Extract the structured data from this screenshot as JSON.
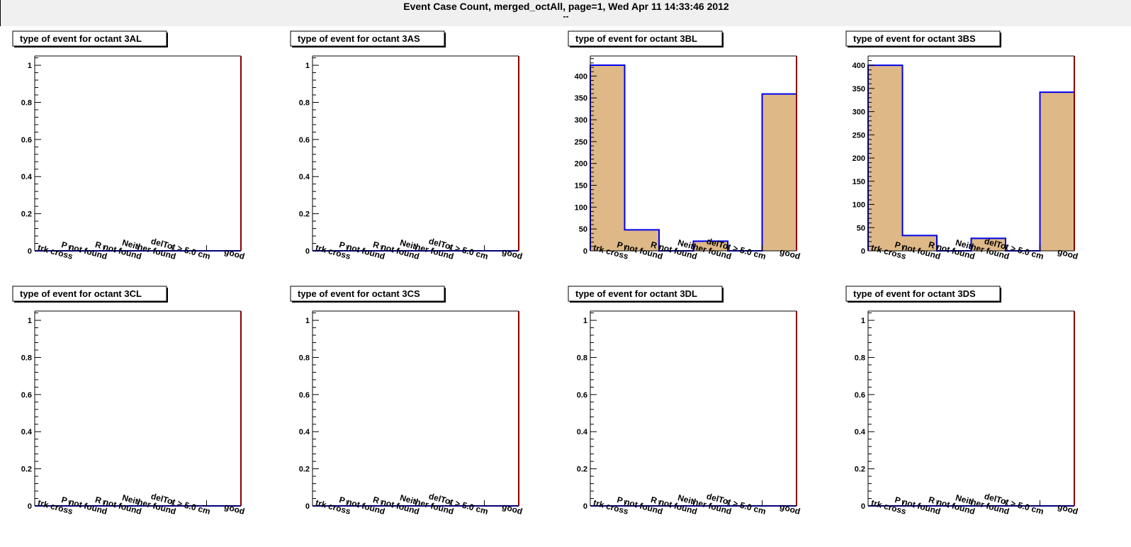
{
  "header": {
    "title": "Event Case Count, merged_octAll, page=1,  Wed Apr 11 14:33:46 2012",
    "subtitle": "--"
  },
  "colors": {
    "fill": "#deb887",
    "line": "#0000ee",
    "frame_right": "#8b0000",
    "header_bg": "#f0f0f0"
  },
  "chart_data": [
    {
      "type": "bar",
      "title": "type of event for octant 3AL",
      "categories": [
        "trk cross",
        "P not found",
        "R not found",
        "Neither found",
        "delTot > 5.0 cm",
        "good"
      ],
      "values": [
        0,
        0,
        0,
        0,
        0,
        0
      ],
      "ylim": [
        0,
        1.05
      ],
      "yticks": [
        0,
        0.2,
        0.4,
        0.6,
        0.8,
        1
      ],
      "ytick_labels": [
        "0",
        "0.2",
        "0.4",
        "0.6",
        "0.8",
        "1"
      ]
    },
    {
      "type": "bar",
      "title": "type of event for octant 3AS",
      "categories": [
        "trk cross",
        "P not found",
        "R not found",
        "Neither found",
        "delTot > 5.0 cm",
        "good"
      ],
      "values": [
        0,
        0,
        0,
        0,
        0,
        0
      ],
      "ylim": [
        0,
        1.05
      ],
      "yticks": [
        0,
        0.2,
        0.4,
        0.6,
        0.8,
        1
      ],
      "ytick_labels": [
        "0",
        "0.2",
        "0.4",
        "0.6",
        "0.8",
        "1"
      ]
    },
    {
      "type": "bar",
      "title": "type of event for octant 3BL",
      "categories": [
        "trk cross",
        "P not found",
        "R not found",
        "Neither found",
        "delTot > 5.0 cm",
        "good"
      ],
      "values": [
        425,
        48,
        0,
        22,
        0,
        359
      ],
      "ylim": [
        0,
        446
      ],
      "yticks": [
        0,
        50,
        100,
        150,
        200,
        250,
        300,
        350,
        400
      ],
      "ytick_labels": [
        "0",
        "50",
        "100",
        "150",
        "200",
        "250",
        "300",
        "350",
        "400"
      ]
    },
    {
      "type": "bar",
      "title": "type of event for octant 3BS",
      "categories": [
        "trk cross",
        "P not found",
        "R not found",
        "Neither found",
        "delTot > 5.0 cm",
        "good"
      ],
      "values": [
        400,
        33,
        0,
        27,
        0,
        342
      ],
      "ylim": [
        0,
        420
      ],
      "yticks": [
        0,
        50,
        100,
        150,
        200,
        250,
        300,
        350,
        400
      ],
      "ytick_labels": [
        "0",
        "50",
        "100",
        "150",
        "200",
        "250",
        "300",
        "350",
        "400"
      ]
    },
    {
      "type": "bar",
      "title": "type of event for octant 3CL",
      "categories": [
        "trk cross",
        "P not found",
        "R not found",
        "Neither found",
        "delTot > 5.0 cm",
        "good"
      ],
      "values": [
        0,
        0,
        0,
        0,
        0,
        0
      ],
      "ylim": [
        0,
        1.05
      ],
      "yticks": [
        0,
        0.2,
        0.4,
        0.6,
        0.8,
        1
      ],
      "ytick_labels": [
        "0",
        "0.2",
        "0.4",
        "0.6",
        "0.8",
        "1"
      ]
    },
    {
      "type": "bar",
      "title": "type of event for octant 3CS",
      "categories": [
        "trk cross",
        "P not found",
        "R not found",
        "Neither found",
        "delTot > 5.0 cm",
        "good"
      ],
      "values": [
        0,
        0,
        0,
        0,
        0,
        0
      ],
      "ylim": [
        0,
        1.05
      ],
      "yticks": [
        0,
        0.2,
        0.4,
        0.6,
        0.8,
        1
      ],
      "ytick_labels": [
        "0",
        "0.2",
        "0.4",
        "0.6",
        "0.8",
        "1"
      ]
    },
    {
      "type": "bar",
      "title": "type of event for octant 3DL",
      "categories": [
        "trk cross",
        "P not found",
        "R not found",
        "Neither found",
        "delTot > 5.0 cm",
        "good"
      ],
      "values": [
        0,
        0,
        0,
        0,
        0,
        0
      ],
      "ylim": [
        0,
        1.05
      ],
      "yticks": [
        0,
        0.2,
        0.4,
        0.6,
        0.8,
        1
      ],
      "ytick_labels": [
        "0",
        "0.2",
        "0.4",
        "0.6",
        "0.8",
        "1"
      ]
    },
    {
      "type": "bar",
      "title": "type of event for octant 3DS",
      "categories": [
        "trk cross",
        "P not found",
        "R not found",
        "Neither found",
        "delTot > 5.0 cm",
        "good"
      ],
      "values": [
        0,
        0,
        0,
        0,
        0,
        0
      ],
      "ylim": [
        0,
        1.05
      ],
      "yticks": [
        0,
        0.2,
        0.4,
        0.6,
        0.8,
        1
      ],
      "ytick_labels": [
        "0",
        "0.2",
        "0.4",
        "0.6",
        "0.8",
        "1"
      ]
    }
  ]
}
